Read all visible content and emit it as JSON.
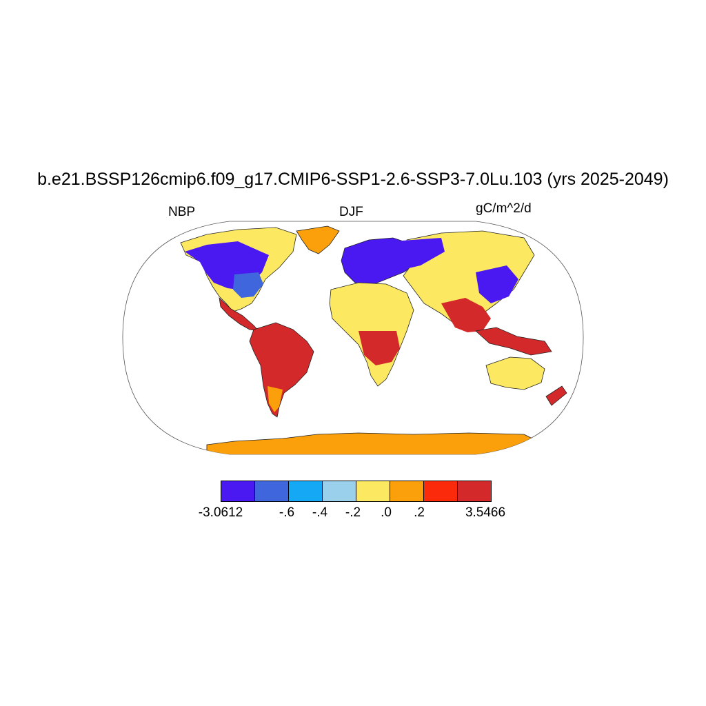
{
  "title": "b.e21.BSSP126cmip6.f09_g17.CMIP6-SSP1-2.6-SSP3-7.0Lu.103 (yrs 2025-2049)",
  "left_label": "NBP",
  "center_label": "DJF",
  "right_label": "gC/m^2/d",
  "colorbar": {
    "colors": [
      "#4a18f0",
      "#3f66dd",
      "#14a8f5",
      "#9ad0ec",
      "#fde961",
      "#fb9f0a",
      "#fb2a0a",
      "#d3292a"
    ],
    "labels": [
      "-3.0612",
      "-.6",
      "-.4",
      "-.2",
      ".0",
      ".2",
      "3.5466"
    ]
  }
}
